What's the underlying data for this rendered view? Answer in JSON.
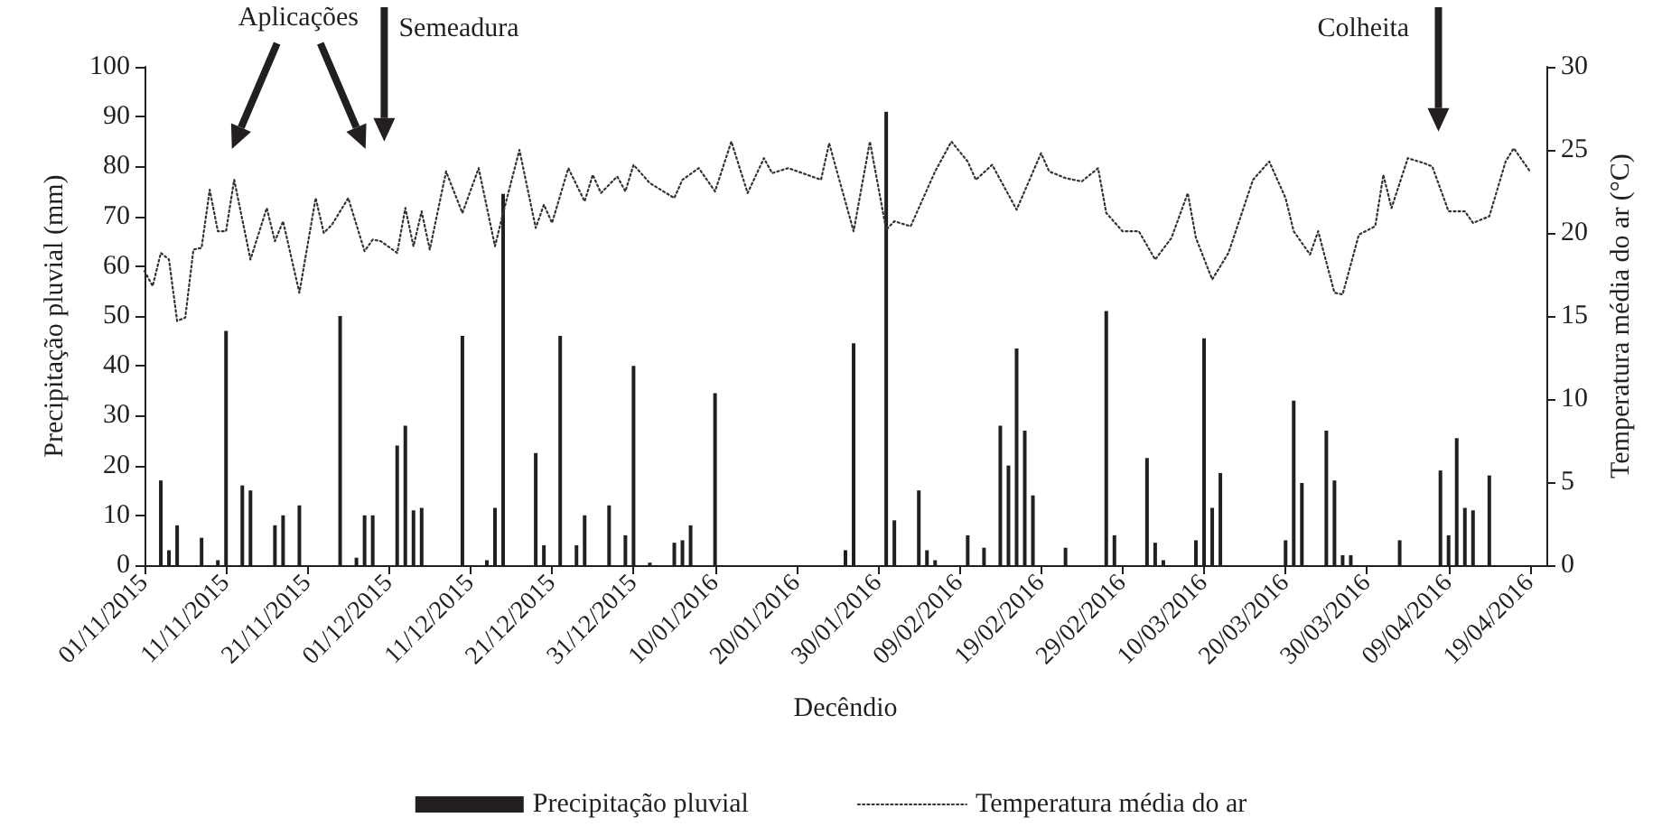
{
  "chart_data": {
    "type": "bar",
    "xlabel": "Decêndio",
    "ylabel": "Precipitação pluvial (mm)",
    "y2label": "Temperatura média do ar (°C)",
    "xlim": [
      "2015-11-01",
      "2016-04-21"
    ],
    "xticks": [
      {
        "value": "2015-11-01",
        "label": "01/11/2015"
      },
      {
        "value": "2015-11-11",
        "label": "11/11/2015"
      },
      {
        "value": "2015-11-21",
        "label": "21/11/2015"
      },
      {
        "value": "2015-12-01",
        "label": "01/12/2015"
      },
      {
        "value": "2015-12-11",
        "label": "11/12/2015"
      },
      {
        "value": "2015-12-21",
        "label": "21/12/2015"
      },
      {
        "value": "2015-12-31",
        "label": "31/12/2015"
      },
      {
        "value": "2016-01-10",
        "label": "10/01/2016"
      },
      {
        "value": "2016-01-20",
        "label": "20/01/2016"
      },
      {
        "value": "2016-01-30",
        "label": "30/01/2016"
      },
      {
        "value": "2016-02-09",
        "label": "09/02/2016"
      },
      {
        "value": "2016-02-19",
        "label": "19/02/2016"
      },
      {
        "value": "2016-02-29",
        "label": "29/02/2016"
      },
      {
        "value": "2016-03-10",
        "label": "10/03/2016"
      },
      {
        "value": "2016-03-20",
        "label": "20/03/2016"
      },
      {
        "value": "2016-03-30",
        "label": "30/03/2016"
      },
      {
        "value": "2016-04-09",
        "label": "09/04/2016"
      },
      {
        "value": "2016-04-19",
        "label": "19/04/2016"
      }
    ],
    "ylim": [
      0,
      100
    ],
    "yticks": [
      0,
      10,
      20,
      30,
      40,
      50,
      60,
      70,
      80,
      90,
      100
    ],
    "y2lim": [
      0,
      30
    ],
    "y2ticks": [
      0,
      5,
      10,
      15,
      20,
      25,
      30
    ],
    "legend": "bottom",
    "grid": false,
    "series": [
      {
        "name": "Precipitação pluvial",
        "color": "#231f20",
        "x": [
          "2015-11-03",
          "2015-11-04",
          "2015-11-05",
          "2015-11-08",
          "2015-11-10",
          "2015-11-11",
          "2015-11-13",
          "2015-11-14",
          "2015-11-17",
          "2015-11-18",
          "2015-11-20",
          "2015-11-25",
          "2015-11-27",
          "2015-11-28",
          "2015-11-29",
          "2015-12-02",
          "2015-12-03",
          "2015-12-04",
          "2015-12-05",
          "2015-12-10",
          "2015-12-13",
          "2015-12-14",
          "2015-12-15",
          "2015-12-19",
          "2015-12-20",
          "2015-12-22",
          "2015-12-24",
          "2015-12-25",
          "2015-12-28",
          "2015-12-30",
          "2015-12-31",
          "2016-01-02",
          "2016-01-05",
          "2016-01-06",
          "2016-01-07",
          "2016-01-10",
          "2016-01-26",
          "2016-01-27",
          "2016-01-31",
          "2016-02-01",
          "2016-02-04",
          "2016-02-05",
          "2016-02-06",
          "2016-02-10",
          "2016-02-12",
          "2016-02-14",
          "2016-02-15",
          "2016-02-16",
          "2016-02-17",
          "2016-02-18",
          "2016-02-22",
          "2016-02-27",
          "2016-02-28",
          "2016-03-03",
          "2016-03-04",
          "2016-03-05",
          "2016-03-09",
          "2016-03-10",
          "2016-03-11",
          "2016-03-12",
          "2016-03-20",
          "2016-03-21",
          "2016-03-22",
          "2016-03-25",
          "2016-03-26",
          "2016-03-27",
          "2016-03-28",
          "2016-04-03",
          "2016-04-08",
          "2016-04-09",
          "2016-04-10",
          "2016-04-11",
          "2016-04-12",
          "2016-04-14"
        ],
        "values": [
          17,
          3,
          8,
          5.5,
          1,
          47,
          16,
          15,
          8,
          10,
          12,
          50,
          1.5,
          10,
          10,
          24,
          28,
          11,
          11.5,
          46,
          1,
          11.5,
          74.5,
          22.5,
          4,
          46,
          4,
          10,
          12,
          6,
          40,
          0.5,
          4.5,
          5,
          8,
          34.5,
          3,
          44.5,
          91,
          9,
          15,
          3,
          1,
          6,
          3.5,
          28,
          20,
          43.5,
          27,
          14,
          3.5,
          51,
          6,
          21.5,
          4.5,
          1,
          5,
          45.5,
          11.5,
          18.5,
          5,
          33,
          16.5,
          27,
          17,
          2,
          2,
          5,
          19,
          6,
          25.5,
          11.5,
          11,
          18
        ]
      },
      {
        "name": "Temperatura média do ar",
        "type": "line",
        "axis": "y2",
        "color": "#333333",
        "line_style": "dotted",
        "marker": "none",
        "x": [
          "2015-11-01",
          "2015-11-02",
          "2015-11-03",
          "2015-11-04",
          "2015-11-05",
          "2015-11-06",
          "2015-11-07",
          "2015-11-08",
          "2015-11-09",
          "2015-11-10",
          "2015-11-11",
          "2015-11-12",
          "2015-11-14",
          "2015-11-16",
          "2015-11-17",
          "2015-11-18",
          "2015-11-20",
          "2015-11-22",
          "2015-11-23",
          "2015-11-24",
          "2015-11-26",
          "2015-11-28",
          "2015-11-29",
          "2015-11-30",
          "2015-12-02",
          "2015-12-03",
          "2015-12-04",
          "2015-12-05",
          "2015-12-06",
          "2015-12-08",
          "2015-12-10",
          "2015-12-12",
          "2015-12-14",
          "2015-12-15",
          "2015-12-17",
          "2015-12-19",
          "2015-12-20",
          "2015-12-21",
          "2015-12-23",
          "2015-12-25",
          "2015-12-26",
          "2015-12-27",
          "2015-12-29",
          "2015-12-30",
          "2015-12-31",
          "2016-01-02",
          "2016-01-05",
          "2016-01-06",
          "2016-01-08",
          "2016-01-10",
          "2016-01-12",
          "2016-01-14",
          "2016-01-16",
          "2016-01-17",
          "2016-01-19",
          "2016-01-23",
          "2016-01-24",
          "2016-01-27",
          "2016-01-29",
          "2016-01-31",
          "2016-02-01",
          "2016-02-03",
          "2016-02-06",
          "2016-02-08",
          "2016-02-10",
          "2016-02-11",
          "2016-02-13",
          "2016-02-16",
          "2016-02-19",
          "2016-02-20",
          "2016-02-22",
          "2016-02-24",
          "2016-02-26",
          "2016-02-27",
          "2016-02-29",
          "2016-03-02",
          "2016-03-04",
          "2016-03-06",
          "2016-03-08",
          "2016-03-09",
          "2016-03-11",
          "2016-03-13",
          "2016-03-16",
          "2016-03-18",
          "2016-03-20",
          "2016-03-21",
          "2016-03-23",
          "2016-03-24",
          "2016-03-26",
          "2016-03-27",
          "2016-03-29",
          "2016-03-31",
          "2016-04-01",
          "2016-04-02",
          "2016-04-04",
          "2016-04-06",
          "2016-04-07",
          "2016-04-09",
          "2016-04-11",
          "2016-04-12",
          "2016-04-14",
          "2016-04-16",
          "2016-04-17",
          "2016-04-19"
        ],
        "values": [
          17.7,
          16.8,
          18.8,
          18.4,
          14.7,
          14.9,
          19.0,
          19.1,
          22.6,
          20.1,
          20.1,
          23.2,
          18.4,
          21.5,
          19.5,
          20.7,
          16.4,
          22.1,
          20.0,
          20.5,
          22.1,
          18.9,
          19.6,
          19.5,
          18.8,
          21.5,
          19.2,
          21.3,
          19.0,
          23.7,
          21.2,
          23.9,
          19.2,
          21.2,
          25.0,
          20.3,
          21.7,
          20.6,
          23.9,
          21.9,
          23.5,
          22.4,
          23.4,
          22.5,
          24.1,
          23.0,
          22.1,
          23.2,
          23.9,
          22.5,
          25.5,
          22.4,
          24.5,
          23.6,
          23.9,
          23.2,
          25.4,
          20.1,
          25.5,
          20.2,
          20.7,
          20.4,
          23.7,
          25.5,
          24.3,
          23.2,
          24.1,
          21.4,
          24.8,
          23.7,
          23.3,
          23.1,
          23.9,
          21.2,
          20.1,
          20.1,
          18.4,
          19.7,
          22.4,
          19.7,
          17.2,
          18.8,
          23.2,
          24.3,
          22.1,
          20.1,
          18.7,
          20.1,
          16.4,
          16.3,
          19.9,
          20.4,
          23.5,
          21.5,
          24.5,
          24.2,
          24.0,
          21.3,
          21.3,
          20.6,
          21.0,
          24.3,
          25.1,
          23.7
        ]
      }
    ],
    "annotations": [
      "Aplicações",
      "Semeadura",
      "Colheita"
    ]
  }
}
